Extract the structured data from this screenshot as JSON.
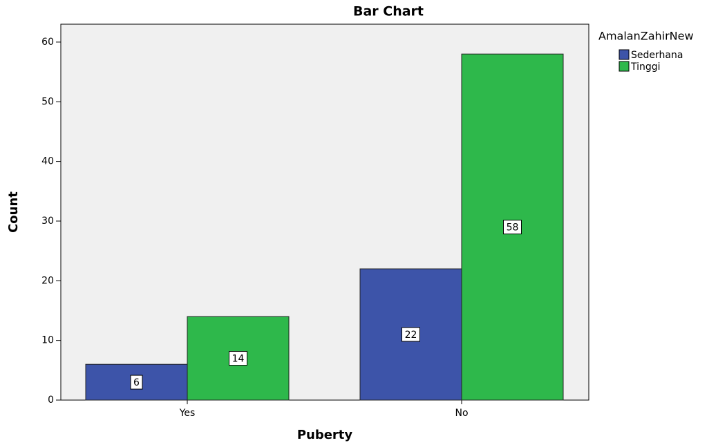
{
  "chart_data": {
    "type": "bar",
    "title": "Bar Chart",
    "x_label": "Puberty",
    "y_label": "Count",
    "legend_title": "AmalanZahirNew",
    "legend": "right",
    "categories": [
      "Yes",
      "No"
    ],
    "series": [
      {
        "name": "Sederhana",
        "color": "#3d54a9",
        "values": [
          6,
          22
        ]
      },
      {
        "name": "Tinggi",
        "color": "#2eb84b",
        "values": [
          14,
          58
        ]
      }
    ],
    "ylim": [
      0,
      63
    ],
    "yticks": [
      0,
      10,
      20,
      30,
      40,
      50,
      60
    ]
  }
}
